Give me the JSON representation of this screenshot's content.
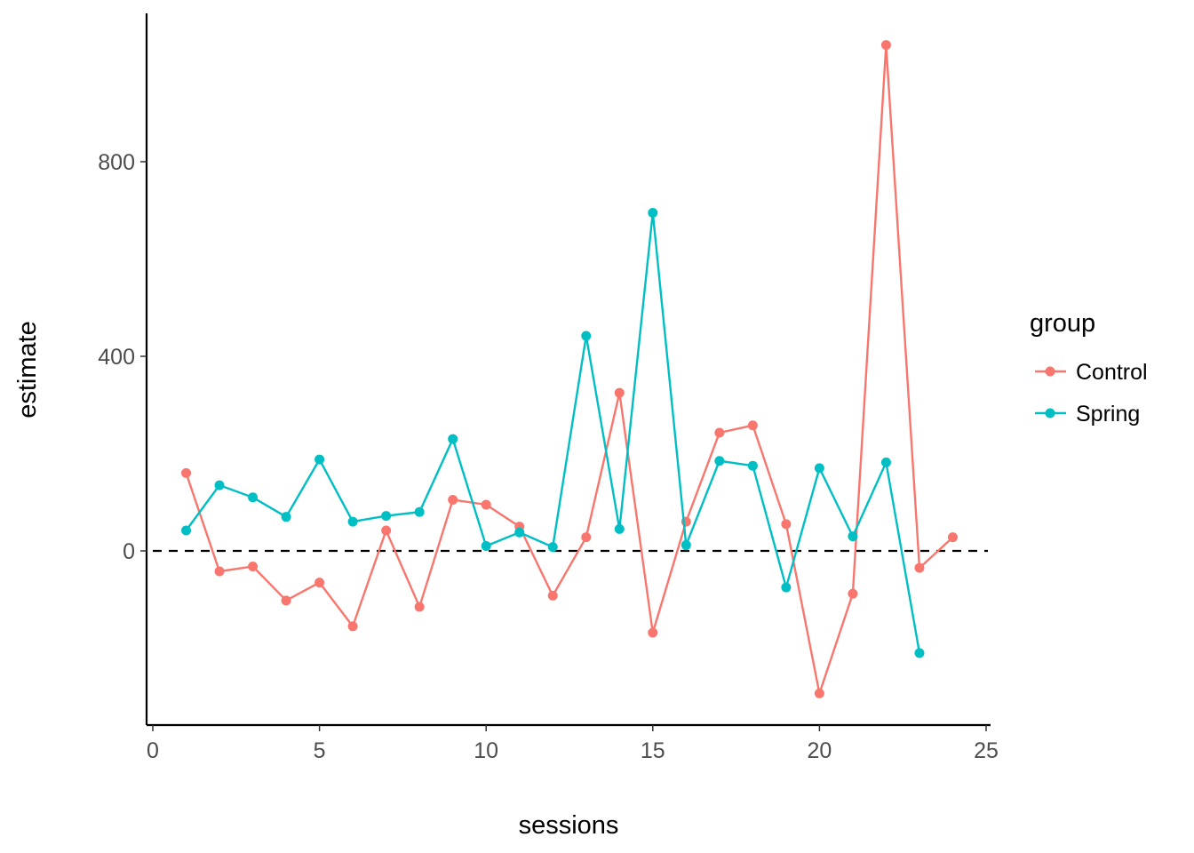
{
  "chart_data": {
    "type": "line",
    "title": "",
    "xlabel": "sessions",
    "ylabel": "estimate",
    "xlim": [
      0,
      25
    ],
    "ylim": [
      -360,
      1050
    ],
    "x_ticks": [
      0,
      5,
      10,
      15,
      20,
      25
    ],
    "y_ticks": [
      0,
      400,
      800
    ],
    "grid": false,
    "reference_line": {
      "y": 0,
      "style": "dashed",
      "color": "#000000"
    },
    "legend": {
      "title": "group",
      "position": "right"
    },
    "series": [
      {
        "name": "Control",
        "color": "#F8766D",
        "x": [
          1,
          2,
          3,
          4,
          5,
          6,
          7,
          8,
          9,
          10,
          11,
          12,
          13,
          14,
          15,
          16,
          17,
          18,
          19,
          20,
          21,
          22,
          23,
          24
        ],
        "values": [
          160,
          -42,
          -32,
          -102,
          -65,
          -155,
          42,
          -115,
          105,
          95,
          50,
          -92,
          28,
          325,
          -168,
          60,
          243,
          258,
          55,
          -293,
          -88,
          1040,
          -35,
          28
        ]
      },
      {
        "name": "Spring",
        "color": "#00BFC4",
        "x": [
          1,
          2,
          3,
          4,
          5,
          6,
          7,
          8,
          9,
          10,
          11,
          12,
          13,
          14,
          15,
          16,
          17,
          18,
          19,
          20,
          21,
          22,
          23
        ],
        "values": [
          42,
          135,
          110,
          70,
          188,
          60,
          72,
          80,
          230,
          10,
          38,
          8,
          442,
          45,
          695,
          12,
          185,
          175,
          -75,
          170,
          30,
          182,
          -210
        ]
      }
    ]
  }
}
